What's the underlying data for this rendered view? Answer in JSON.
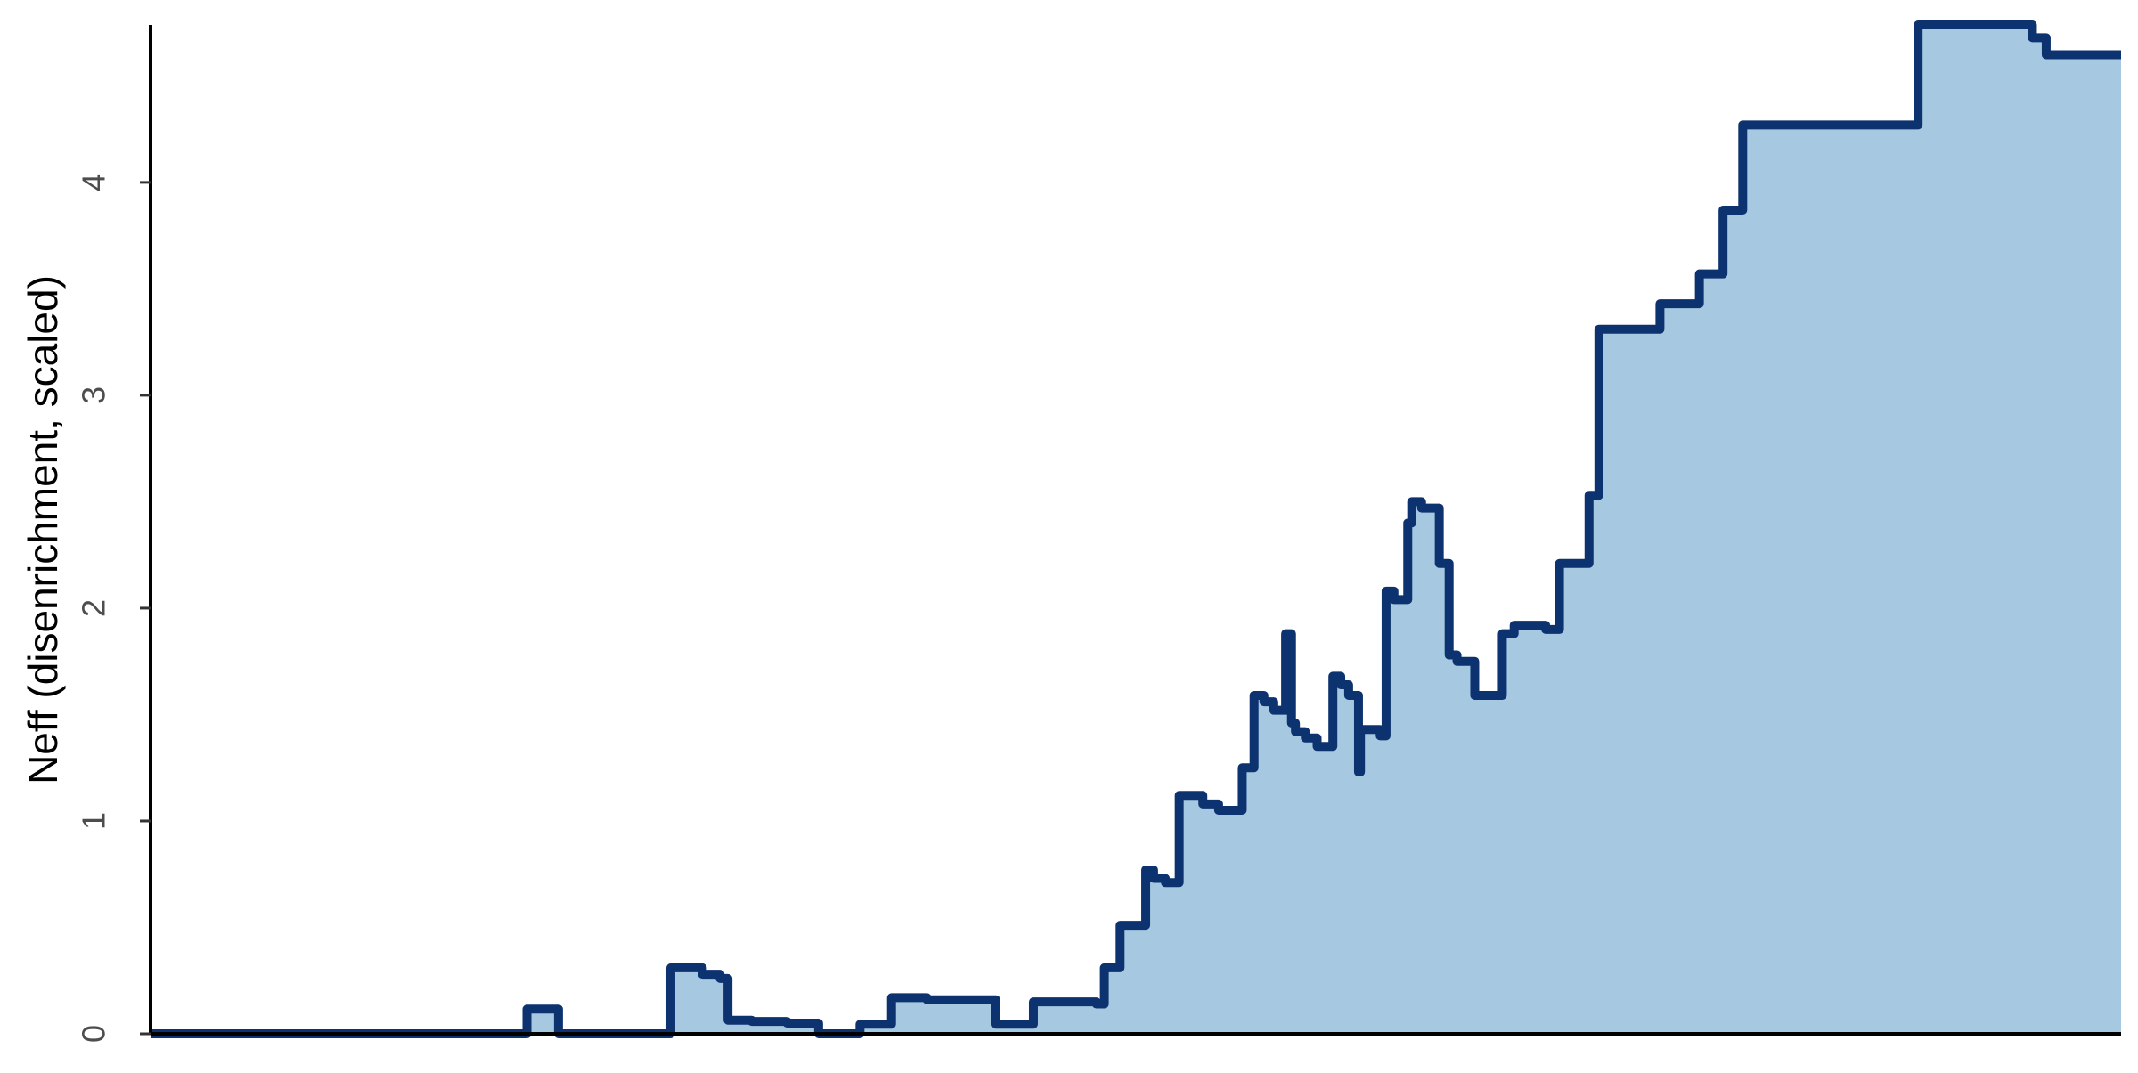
{
  "chart_data": {
    "type": "step-area",
    "y_label": "Neff (disenrichment, scaled)",
    "x": [
      0,
      19.1,
      20.7,
      26.4,
      28.0,
      28.9,
      29.3,
      30.5,
      32.3,
      33.9,
      36.0,
      37.6,
      39.4,
      42.9,
      44.8,
      48.0,
      48.4,
      49.2,
      50.5,
      50.9,
      51.5,
      52.2,
      53.4,
      54.2,
      55.4,
      56.0,
      56.5,
      57.0,
      57.6,
      57.9,
      58.1,
      58.6,
      59.2,
      60.0,
      60.4,
      60.8,
      61.3,
      61.4,
      62.4,
      62.7,
      63.1,
      63.8,
      64.0,
      64.5,
      65.4,
      65.9,
      66.3,
      67.2,
      68.6,
      69.2,
      70.8,
      71.5,
      73.0,
      73.5,
      76.6,
      78.6,
      79.8,
      80.8,
      89.7,
      95.5,
      96.2,
      100
    ],
    "values": [
      0,
      0.116,
      0,
      0.31,
      0.28,
      0.26,
      0.064,
      0.058,
      0.05,
      0,
      0.045,
      0.17,
      0.16,
      0.045,
      0.15,
      0.14,
      0.31,
      0.51,
      0.77,
      0.73,
      0.71,
      1.12,
      1.08,
      1.05,
      1.25,
      1.59,
      1.56,
      1.52,
      1.88,
      1.46,
      1.42,
      1.39,
      1.35,
      1.68,
      1.64,
      1.59,
      1.23,
      1.43,
      1.4,
      2.08,
      2.04,
      2.4,
      2.5,
      2.47,
      2.21,
      1.78,
      1.75,
      1.59,
      1.88,
      1.92,
      1.9,
      2.21,
      2.53,
      3.31,
      3.43,
      3.57,
      3.87,
      4.27,
      4.74,
      4.68,
      4.6,
      4.6
    ],
    "line_color": "#0c3370",
    "fill_color": "#a6c8e0",
    "xlim": [
      0,
      100
    ],
    "ylim": [
      0,
      4.74
    ],
    "yticks": [
      0,
      1,
      2,
      3,
      4
    ]
  }
}
